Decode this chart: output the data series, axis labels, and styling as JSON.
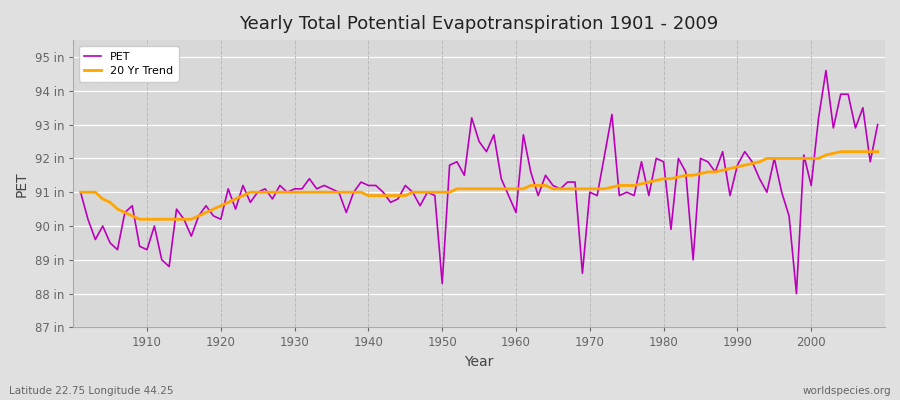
{
  "title": "Yearly Total Potential Evapotranspiration 1901 - 2009",
  "xlabel": "Year",
  "ylabel": "PET",
  "subtitle_left": "Latitude 22.75 Longitude 44.25",
  "subtitle_right": "worldspecies.org",
  "ylim": [
    87,
    95.5
  ],
  "yticks": [
    87,
    88,
    89,
    90,
    91,
    92,
    93,
    94,
    95
  ],
  "ytick_labels": [
    "87 in",
    "88 in",
    "89 in",
    "90 in",
    "91 in",
    "92 in",
    "93 in",
    "94 in",
    "95 in"
  ],
  "xticks": [
    1910,
    1920,
    1930,
    1940,
    1950,
    1960,
    1970,
    1980,
    1990,
    2000
  ],
  "pet_color": "#BB00BB",
  "trend_color": "#FFA500",
  "background_color": "#E0E0E0",
  "plot_bg_color": "#D8D8D8",
  "grid_color_h": "#FFFFFF",
  "grid_color_v": "#BBBBBB",
  "years": [
    1901,
    1902,
    1903,
    1904,
    1905,
    1906,
    1907,
    1908,
    1909,
    1910,
    1911,
    1912,
    1913,
    1914,
    1915,
    1916,
    1917,
    1918,
    1919,
    1920,
    1921,
    1922,
    1923,
    1924,
    1925,
    1926,
    1927,
    1928,
    1929,
    1930,
    1931,
    1932,
    1933,
    1934,
    1935,
    1936,
    1937,
    1938,
    1939,
    1940,
    1941,
    1942,
    1943,
    1944,
    1945,
    1946,
    1947,
    1948,
    1949,
    1950,
    1951,
    1952,
    1953,
    1954,
    1955,
    1956,
    1957,
    1958,
    1959,
    1960,
    1961,
    1962,
    1963,
    1964,
    1965,
    1966,
    1967,
    1968,
    1969,
    1970,
    1971,
    1972,
    1973,
    1974,
    1975,
    1976,
    1977,
    1978,
    1979,
    1980,
    1981,
    1982,
    1983,
    1984,
    1985,
    1986,
    1987,
    1988,
    1989,
    1990,
    1991,
    1992,
    1993,
    1994,
    1995,
    1996,
    1997,
    1998,
    1999,
    2000,
    2001,
    2002,
    2003,
    2004,
    2005,
    2006,
    2007,
    2008,
    2009
  ],
  "pet_values": [
    91.0,
    90.2,
    89.6,
    90.0,
    89.5,
    89.3,
    90.4,
    90.6,
    89.4,
    89.3,
    90.0,
    89.0,
    88.8,
    90.5,
    90.2,
    89.7,
    90.3,
    90.6,
    90.3,
    90.2,
    91.1,
    90.5,
    91.2,
    90.7,
    91.0,
    91.1,
    90.8,
    91.2,
    91.0,
    91.1,
    91.1,
    91.4,
    91.1,
    91.2,
    91.1,
    91.0,
    90.4,
    91.0,
    91.3,
    91.2,
    91.2,
    91.0,
    90.7,
    90.8,
    91.2,
    91.0,
    90.6,
    91.0,
    90.9,
    88.3,
    91.8,
    91.9,
    91.5,
    93.2,
    92.5,
    92.2,
    92.7,
    91.4,
    90.9,
    90.4,
    92.7,
    91.6,
    90.9,
    91.5,
    91.2,
    91.1,
    91.3,
    91.3,
    88.6,
    91.0,
    90.9,
    92.1,
    93.3,
    90.9,
    91.0,
    90.9,
    91.9,
    90.9,
    92.0,
    91.9,
    89.9,
    92.0,
    91.6,
    89.0,
    92.0,
    91.9,
    91.6,
    92.2,
    90.9,
    91.8,
    92.2,
    91.9,
    91.4,
    91.0,
    92.0,
    91.0,
    90.3,
    88.0,
    92.1,
    91.2,
    93.2,
    94.6,
    92.9,
    93.9,
    93.9,
    92.9,
    93.5,
    91.9,
    93.0
  ],
  "trend_values": [
    91.0,
    91.0,
    91.0,
    90.8,
    90.7,
    90.5,
    90.4,
    90.3,
    90.2,
    90.2,
    90.2,
    90.2,
    90.2,
    90.2,
    90.2,
    90.2,
    90.3,
    90.4,
    90.5,
    90.6,
    90.7,
    90.8,
    90.9,
    91.0,
    91.0,
    91.0,
    91.0,
    91.0,
    91.0,
    91.0,
    91.0,
    91.0,
    91.0,
    91.0,
    91.0,
    91.0,
    91.0,
    91.0,
    91.0,
    90.9,
    90.9,
    90.9,
    90.9,
    90.9,
    90.9,
    91.0,
    91.0,
    91.0,
    91.0,
    91.0,
    91.0,
    91.1,
    91.1,
    91.1,
    91.1,
    91.1,
    91.1,
    91.1,
    91.1,
    91.1,
    91.1,
    91.2,
    91.2,
    91.2,
    91.1,
    91.1,
    91.1,
    91.1,
    91.1,
    91.1,
    91.1,
    91.1,
    91.15,
    91.2,
    91.2,
    91.2,
    91.25,
    91.3,
    91.35,
    91.4,
    91.4,
    91.45,
    91.5,
    91.5,
    91.55,
    91.6,
    91.6,
    91.65,
    91.7,
    91.75,
    91.8,
    91.85,
    91.9,
    92.0,
    92.0,
    92.0,
    92.0,
    92.0,
    92.0,
    92.0,
    92.0,
    92.1,
    92.15,
    92.2,
    92.2,
    92.2,
    92.2,
    92.2,
    92.2
  ]
}
